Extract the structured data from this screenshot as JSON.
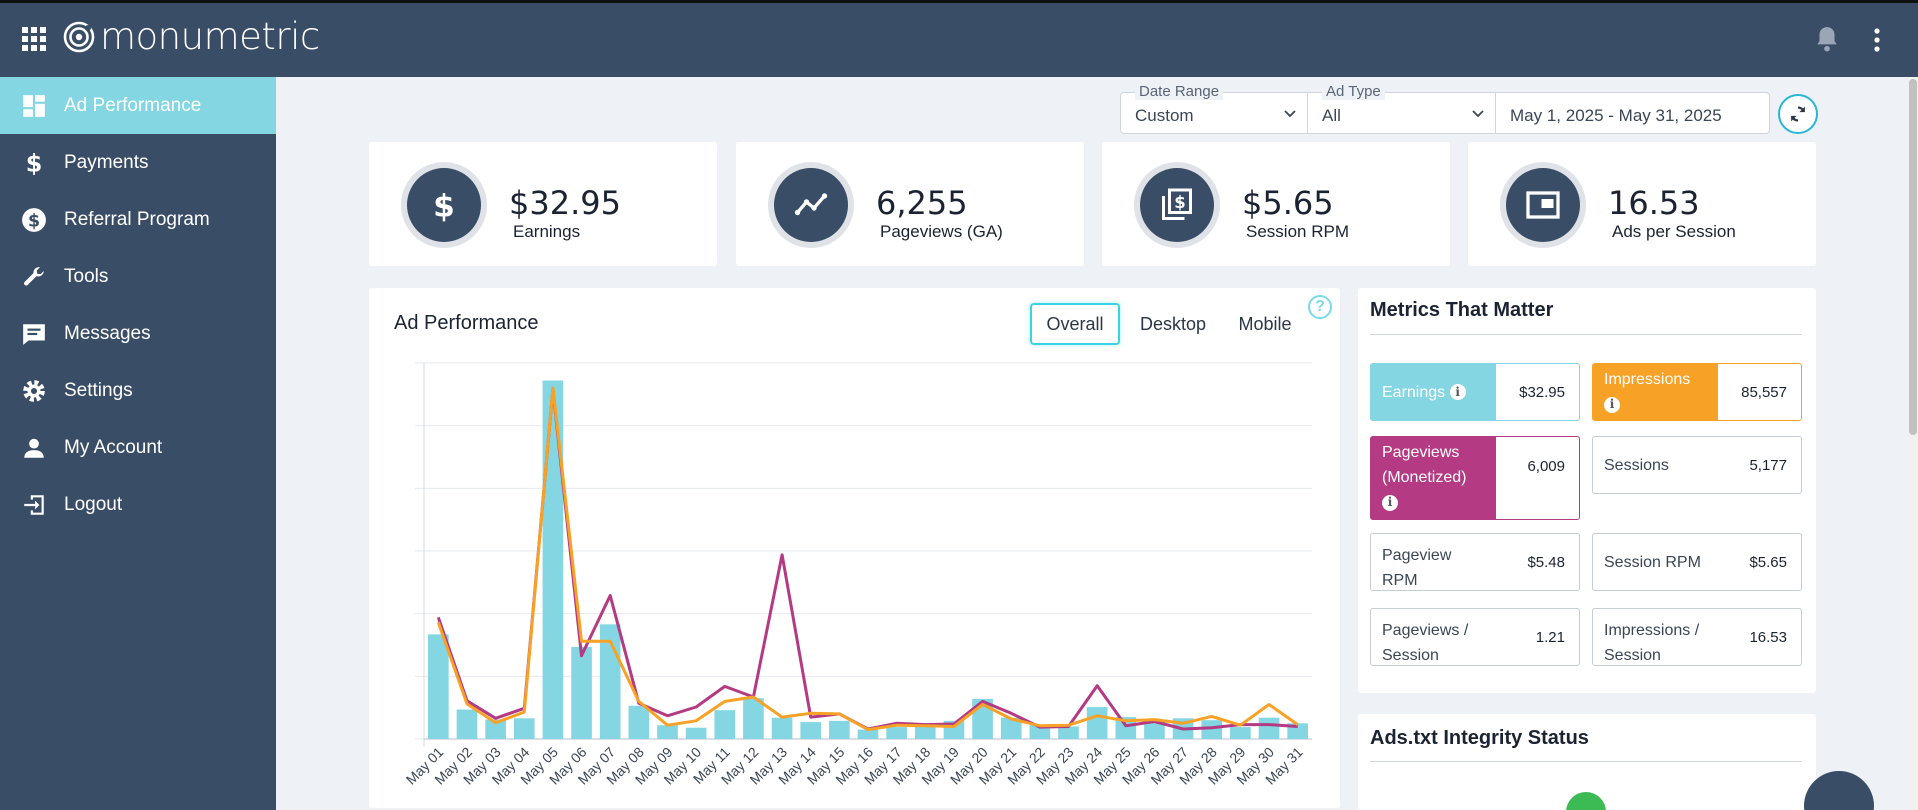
{
  "brand": {
    "name": "monumetric"
  },
  "sidebar": {
    "items": [
      {
        "label": "Ad Performance",
        "icon": "dashboard-icon",
        "active": true
      },
      {
        "label": "Payments",
        "icon": "dollar-icon"
      },
      {
        "label": "Referral Program",
        "icon": "dollar-circle-icon"
      },
      {
        "label": "Tools",
        "icon": "wrench-icon"
      },
      {
        "label": "Messages",
        "icon": "message-icon"
      },
      {
        "label": "Settings",
        "icon": "gear-icon"
      },
      {
        "label": "My Account",
        "icon": "person-icon"
      },
      {
        "label": "Logout",
        "icon": "logout-icon"
      }
    ]
  },
  "filters": {
    "date_range": {
      "label": "Date Range",
      "value": "Custom"
    },
    "ad_type": {
      "label": "Ad Type",
      "value": "All"
    },
    "date_value": "May 1, 2025 - May 31, 2025"
  },
  "stats": [
    {
      "value": "$32.95",
      "label": "Earnings",
      "icon": "dollar-icon"
    },
    {
      "value": "6,255",
      "label": "Pageviews (GA)",
      "icon": "trend-icon"
    },
    {
      "value": "$5.65",
      "label": "Session RPM",
      "icon": "rpm-icon"
    },
    {
      "value": "16.53",
      "label": "Ads per Session",
      "icon": "ad-window-icon"
    }
  ],
  "ad_performance": {
    "title": "Ad Performance",
    "tabs": [
      {
        "label": "Overall",
        "active": true
      },
      {
        "label": "Desktop"
      },
      {
        "label": "Mobile"
      }
    ],
    "help": "?"
  },
  "chart_data": {
    "type": "bar",
    "categories": [
      "May 01",
      "May 02",
      "May 03",
      "May 04",
      "May 05",
      "May 06",
      "May 07",
      "May 08",
      "May 09",
      "May 10",
      "May 11",
      "May 12",
      "May 13",
      "May 14",
      "May 15",
      "May 16",
      "May 17",
      "May 18",
      "May 19",
      "May 20",
      "May 21",
      "May 22",
      "May 23",
      "May 24",
      "May 25",
      "May 26",
      "May 27",
      "May 28",
      "May 29",
      "May 30",
      "May 31"
    ],
    "ylim": [
      0,
      6
    ],
    "grid": true,
    "series": [
      {
        "kind": "bar",
        "color": "#84d6e2",
        "values": [
          1.67,
          0.47,
          0.31,
          0.33,
          5.72,
          1.47,
          1.83,
          0.53,
          0.22,
          0.18,
          0.46,
          0.65,
          0.34,
          0.27,
          0.29,
          0.15,
          0.19,
          0.22,
          0.29,
          0.64,
          0.34,
          0.22,
          0.2,
          0.51,
          0.35,
          0.28,
          0.33,
          0.3,
          0.19,
          0.34,
          0.25
        ]
      },
      {
        "kind": "line",
        "color": "#b33a83",
        "values": [
          1.94,
          0.61,
          0.33,
          0.49,
          5.58,
          1.33,
          2.29,
          0.57,
          0.37,
          0.51,
          0.84,
          0.67,
          2.94,
          0.35,
          0.4,
          0.16,
          0.25,
          0.23,
          0.24,
          0.6,
          0.41,
          0.19,
          0.2,
          0.85,
          0.21,
          0.28,
          0.16,
          0.18,
          0.23,
          0.23,
          0.2
        ]
      },
      {
        "kind": "line",
        "color": "#f7a226",
        "values": [
          1.86,
          0.56,
          0.26,
          0.43,
          5.6,
          1.56,
          1.56,
          0.6,
          0.22,
          0.29,
          0.6,
          0.67,
          0.35,
          0.41,
          0.4,
          0.15,
          0.22,
          0.21,
          0.2,
          0.55,
          0.32,
          0.21,
          0.22,
          0.37,
          0.29,
          0.31,
          0.25,
          0.36,
          0.22,
          0.55,
          0.23
        ]
      }
    ]
  },
  "metrics": {
    "title": "Metrics That Matter",
    "earnings": {
      "label": "Earnings",
      "value": "$32.95"
    },
    "impressions": {
      "label": "Impressions",
      "value": "85,557"
    },
    "pageviews_monetized": {
      "label1": "Pageviews",
      "label2": "(Monetized)",
      "value": "6,009"
    },
    "sessions": {
      "label": "Sessions",
      "value": "5,177"
    },
    "pageview_rpm": {
      "label1": "Pageview",
      "label2": "RPM",
      "value": "$5.48"
    },
    "session_rpm": {
      "label": "Session RPM",
      "value": "$5.65"
    },
    "pageviews_per_session": {
      "label1": "Pageviews /",
      "label2": "Session",
      "value": "1.21"
    },
    "impressions_per_session": {
      "label1": "Impressions /",
      "label2": "Session",
      "value": "16.53"
    },
    "info": "i"
  },
  "ads_txt": {
    "title": "Ads.txt Integrity Status"
  },
  "colors": {
    "nav": "#3a4d66",
    "accent": "#84d6e2",
    "magenta": "#b33a83",
    "orange": "#f7a226"
  }
}
